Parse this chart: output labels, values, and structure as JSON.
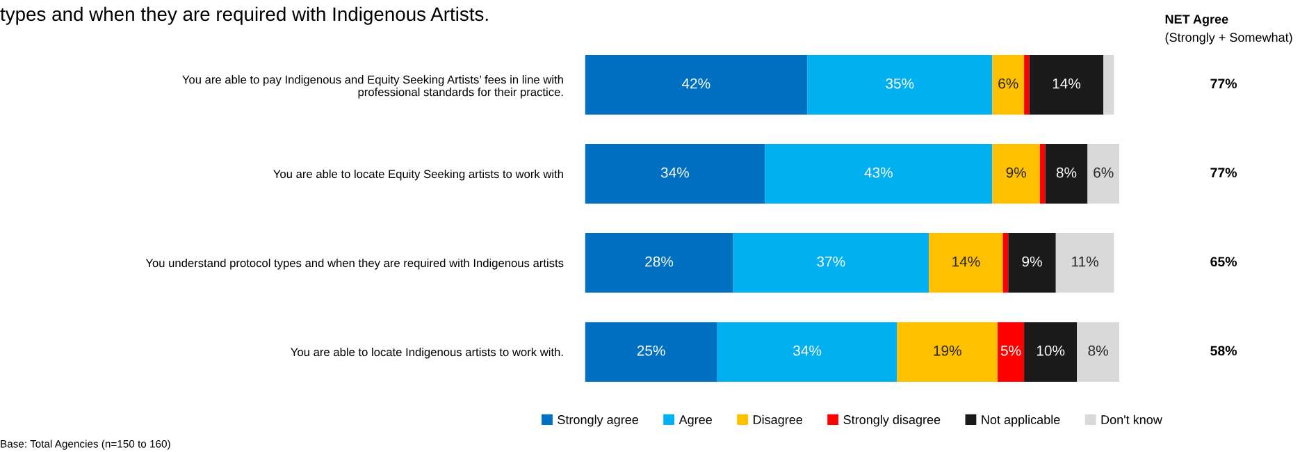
{
  "chart_data": {
    "type": "bar",
    "orientation": "horizontal",
    "stacked": true,
    "title": "types and when they are required with Indigenous Artists.",
    "categories": [
      "You are able to pay Indigenous and Equity Seeking Artists’ fees in line with\nprofessional standards for their practice.",
      "You are able to locate Equity Seeking artists to work with",
      "You understand protocol types and when they are required with Indigenous artists",
      "You are able to locate Indigenous artists to work with."
    ],
    "series": [
      {
        "name": "Strongly agree",
        "color": "#0070c0",
        "values": [
          42,
          34,
          28,
          25
        ],
        "value_labels": [
          "42%",
          "34%",
          "28%",
          "25%"
        ]
      },
      {
        "name": "Agree",
        "color": "#00b0f0",
        "values": [
          35,
          43,
          37,
          34
        ],
        "value_labels": [
          "35%",
          "43%",
          "37%",
          "34%"
        ]
      },
      {
        "name": "Disagree",
        "color": "#ffc000",
        "values": [
          6,
          9,
          14,
          19
        ],
        "value_labels": [
          "6%",
          "9%",
          "14%",
          "19%"
        ]
      },
      {
        "name": "Strongly disagree",
        "color": "#ff0000",
        "values": [
          1,
          1,
          1,
          5
        ],
        "value_labels": [
          null,
          null,
          null,
          "5%"
        ]
      },
      {
        "name": "Not applicable",
        "color": "#1a1a1a",
        "values": [
          14,
          8,
          9,
          10
        ],
        "value_labels": [
          "14%",
          "8%",
          "9%",
          "10%"
        ]
      },
      {
        "name": "Don't know",
        "color": "#d9d9d9",
        "values": [
          2,
          6,
          11,
          8
        ],
        "value_labels": [
          null,
          "6%",
          "11%",
          "8%"
        ]
      }
    ],
    "annotations": [
      "NET Agree",
      "(Strongly + Somewhat)",
      "77%",
      "77%",
      "65%",
      "58%",
      "Base: Total Agencies (n=150 to 160)"
    ],
    "legend": "bottom",
    "tick_labels": "y",
    "grid": false
  }
}
